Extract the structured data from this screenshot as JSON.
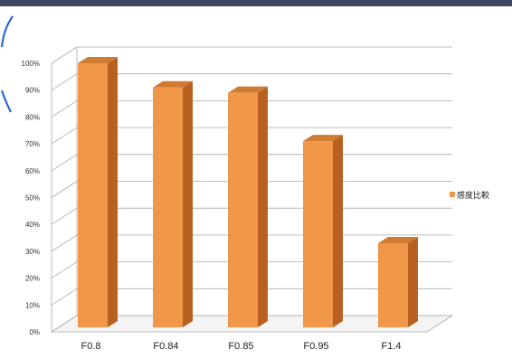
{
  "chart_data": {
    "type": "bar",
    "style": "3d-column",
    "categories": [
      "F0.8",
      "F0.84",
      "F0.85",
      "F0.95",
      "F1.4"
    ],
    "series": [
      {
        "name": "感度比較",
        "values": [
          100,
          91,
          89,
          71,
          33
        ],
        "color": "#f0974a"
      }
    ],
    "yticks": [
      "0%",
      "10%",
      "20%",
      "30%",
      "40%",
      "50%",
      "60%",
      "70%",
      "80%",
      "90%",
      "100%"
    ],
    "ylim": [
      0,
      100
    ],
    "grid": true,
    "legend_position": "right"
  },
  "colors": {
    "bar_front": "#f0974a",
    "bar_side": "#b8601f",
    "bar_top": "#cf7b34",
    "grid": "#a8a8a8",
    "top_strip": "#3b4a62",
    "accent": "#1f5fd6"
  }
}
